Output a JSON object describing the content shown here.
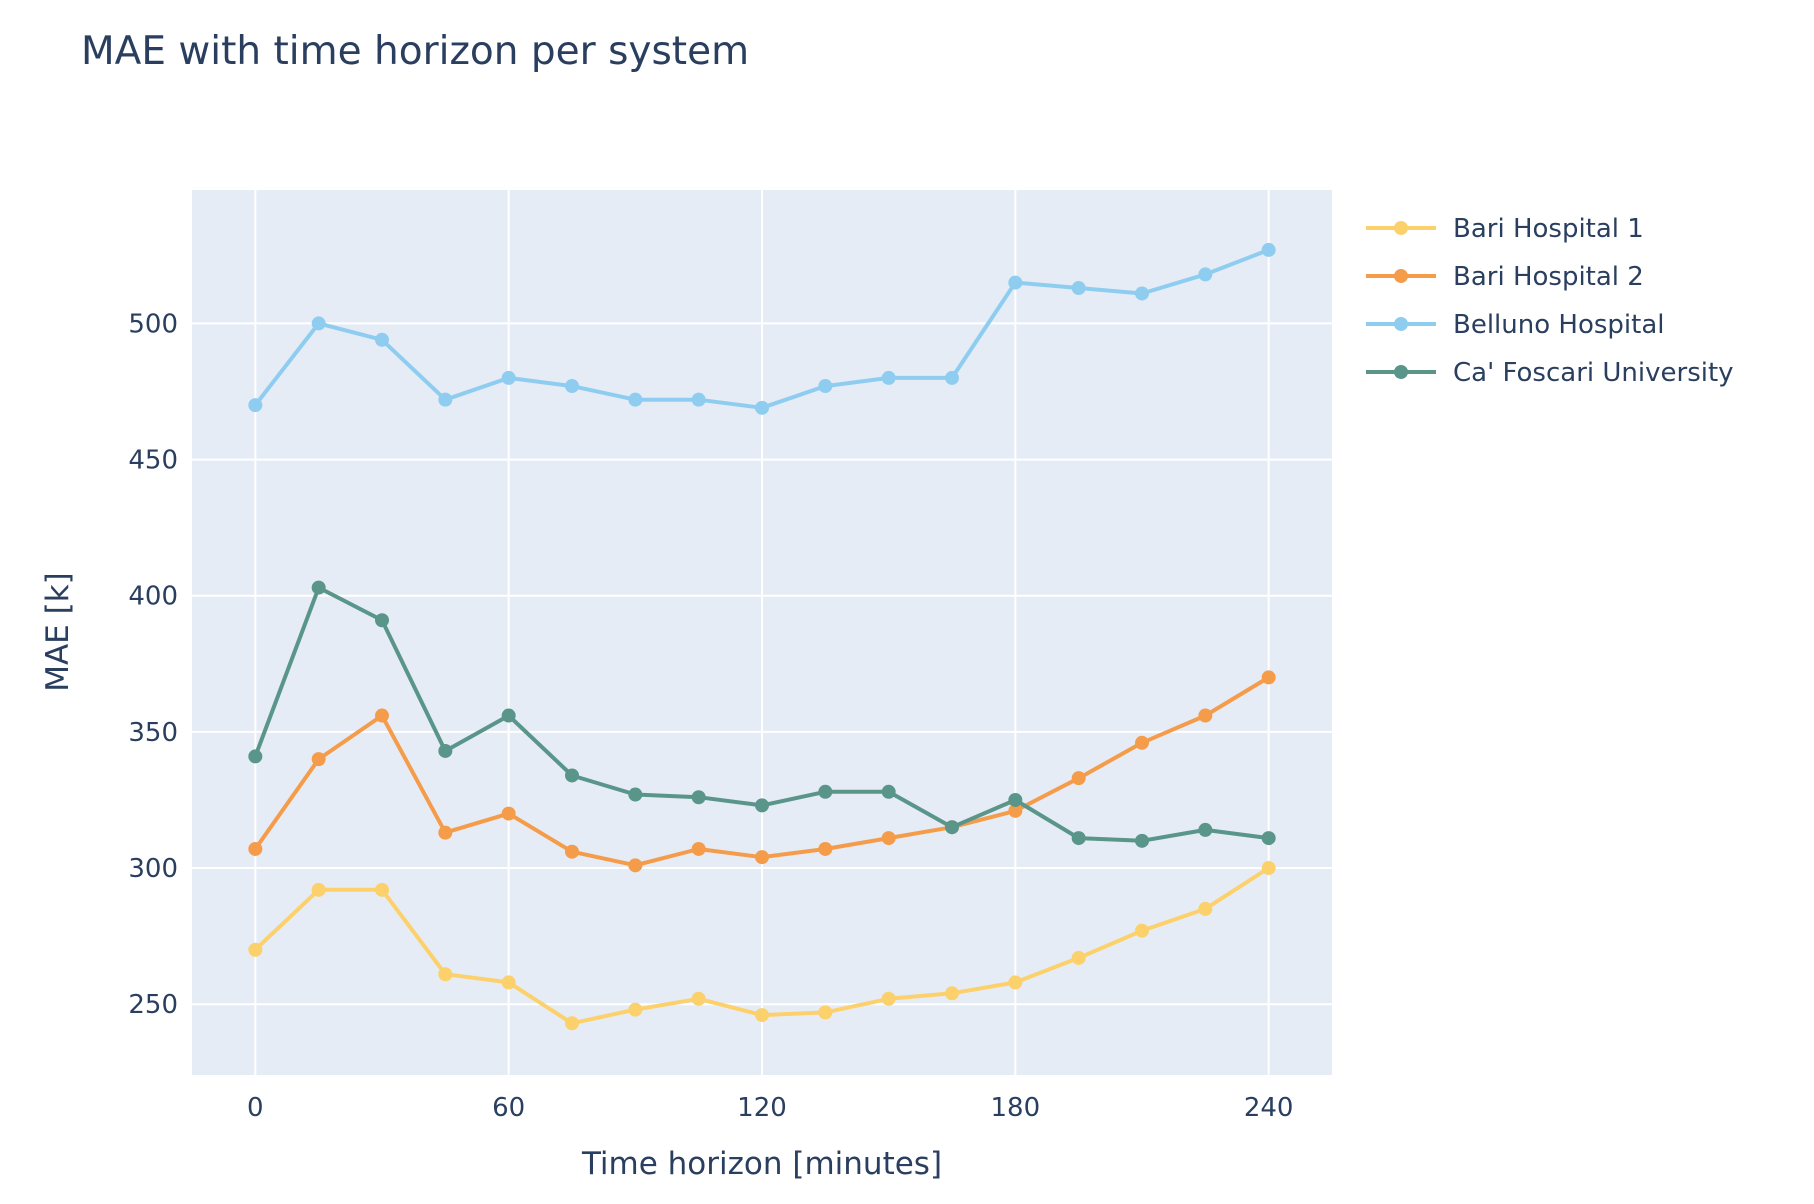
{
  "chart_data": {
    "type": "line",
    "title": "MAE with time horizon per system",
    "xlabel": "Time horizon [minutes]",
    "ylabel": "MAE [k]",
    "xlim": [
      -15,
      255
    ],
    "ylim": [
      224,
      549
    ],
    "x_ticks": [
      0,
      60,
      120,
      180,
      240
    ],
    "y_ticks": [
      250,
      300,
      350,
      400,
      450,
      500
    ],
    "grid": true,
    "legend_position": "right",
    "plot_background": "#e5ecf6",
    "x": [
      0,
      15,
      30,
      45,
      60,
      75,
      90,
      105,
      120,
      135,
      150,
      165,
      180,
      195,
      210,
      225,
      240
    ],
    "series": [
      {
        "name": "Bari Hospital 1",
        "color": "#fcd16b",
        "values": [
          270,
          292,
          292,
          261,
          258,
          243,
          248,
          252,
          246,
          247,
          252,
          254,
          258,
          267,
          277,
          285,
          300
        ]
      },
      {
        "name": "Bari Hospital 2",
        "color": "#f59c4b",
        "values": [
          307,
          340,
          356,
          313,
          320,
          306,
          301,
          307,
          304,
          307,
          311,
          315,
          321,
          333,
          346,
          356,
          370
        ]
      },
      {
        "name": "Belluno Hospital",
        "color": "#8fcdf0",
        "values": [
          470,
          500,
          494,
          472,
          480,
          477,
          472,
          472,
          469,
          477,
          480,
          480,
          515,
          513,
          511,
          518,
          527
        ]
      },
      {
        "name": "Ca' Foscari University",
        "color": "#5a958a",
        "values": [
          341,
          403,
          391,
          343,
          356,
          334,
          327,
          326,
          323,
          328,
          328,
          315,
          325,
          311,
          310,
          314,
          311
        ]
      }
    ]
  }
}
